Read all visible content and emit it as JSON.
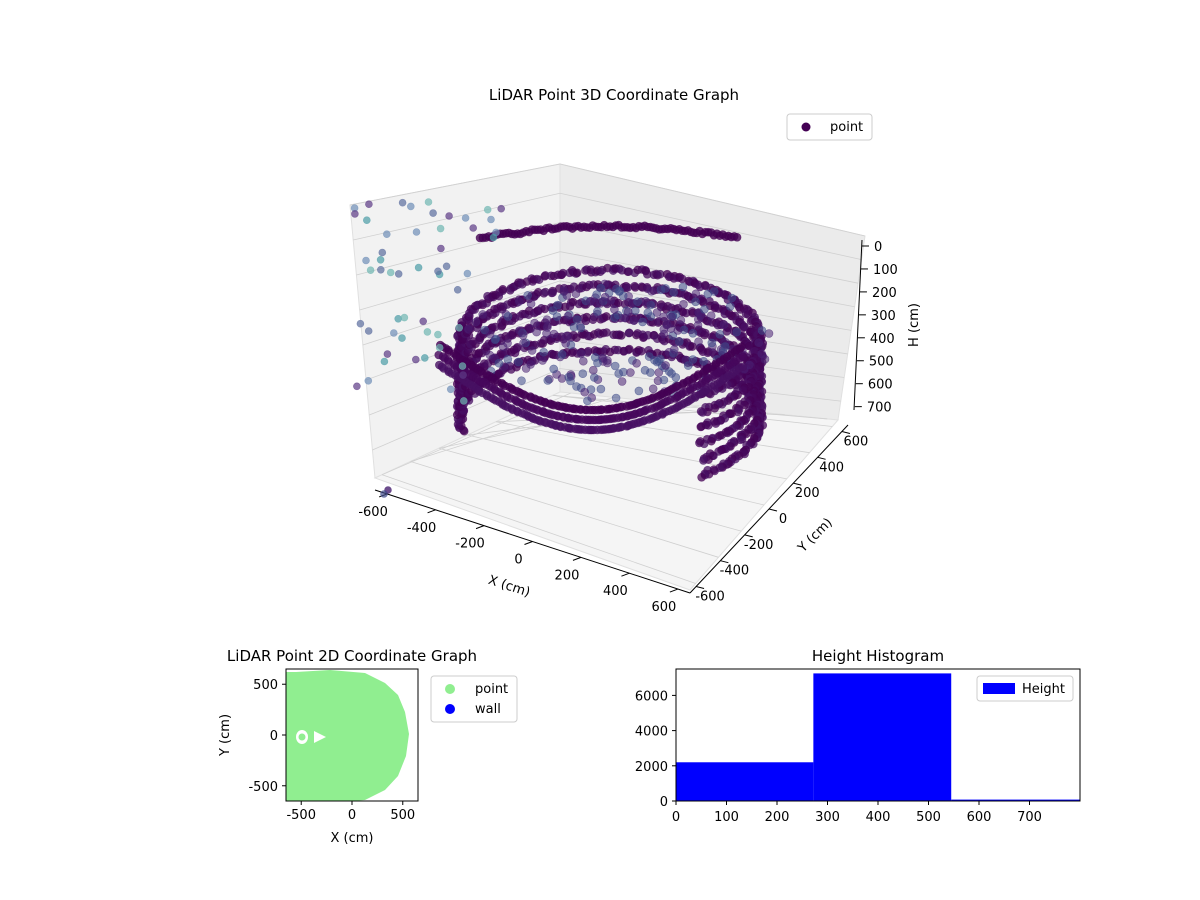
{
  "chart_data": [
    {
      "type": "scatter3d",
      "title": "LiDAR Point 3D Coordinate Graph",
      "xlabel": "X (cm)",
      "ylabel": "Y (cm)",
      "zlabel": "H (cm)",
      "x_ticks": [
        -600,
        -400,
        -200,
        0,
        200,
        400,
        600
      ],
      "y_ticks": [
        -600,
        -400,
        -200,
        0,
        200,
        400,
        600
      ],
      "z_ticks": [
        0,
        100,
        200,
        300,
        400,
        500,
        600,
        700
      ],
      "xlim": [
        -650,
        650
      ],
      "ylim": [
        -650,
        650
      ],
      "zlim": [
        0,
        780
      ],
      "z_inverted": true,
      "legend": {
        "position": "top-right",
        "entries": [
          {
            "label": "point",
            "color": "#440154"
          }
        ]
      },
      "series": [
        {
          "name": "point",
          "color": "#440154",
          "description_ring": {
            "radius_cm": 560,
            "h_range": [
              220,
              720
            ]
          }
        }
      ],
      "grid": true
    },
    {
      "type": "scatter",
      "title": "LiDAR Point 2D Coordinate Graph",
      "xlabel": "X (cm)",
      "ylabel": "Y (cm)",
      "x_ticks": [
        -500,
        0,
        500
      ],
      "y_ticks": [
        -500,
        0,
        500
      ],
      "xlim": [
        -650,
        650
      ],
      "ylim": [
        -650,
        650
      ],
      "legend": {
        "position": "outside-right",
        "entries": [
          {
            "label": "point",
            "color": "#90ee90"
          },
          {
            "label": "wall",
            "color": "#0000ff"
          }
        ]
      },
      "series": [
        {
          "name": "point",
          "color": "#90ee90"
        },
        {
          "name": "wall",
          "color": "#0000ff"
        }
      ]
    },
    {
      "type": "bar",
      "title": "Height Histogram",
      "x_ticks": [
        0,
        100,
        200,
        300,
        400,
        500,
        600,
        700
      ],
      "y_ticks": [
        0,
        2000,
        4000,
        6000
      ],
      "xlim": [
        0,
        800
      ],
      "ylim": [
        0,
        7500
      ],
      "bin_edges": [
        0,
        272,
        545,
        800
      ],
      "values": [
        2200,
        7250,
        80
      ],
      "color": "#0000ff",
      "legend": {
        "position": "top-right",
        "entries": [
          {
            "label": "Height",
            "color": "#0000ff"
          }
        ]
      },
      "series": [
        {
          "name": "Height",
          "values": [
            2200,
            7250,
            80
          ]
        }
      ]
    }
  ]
}
